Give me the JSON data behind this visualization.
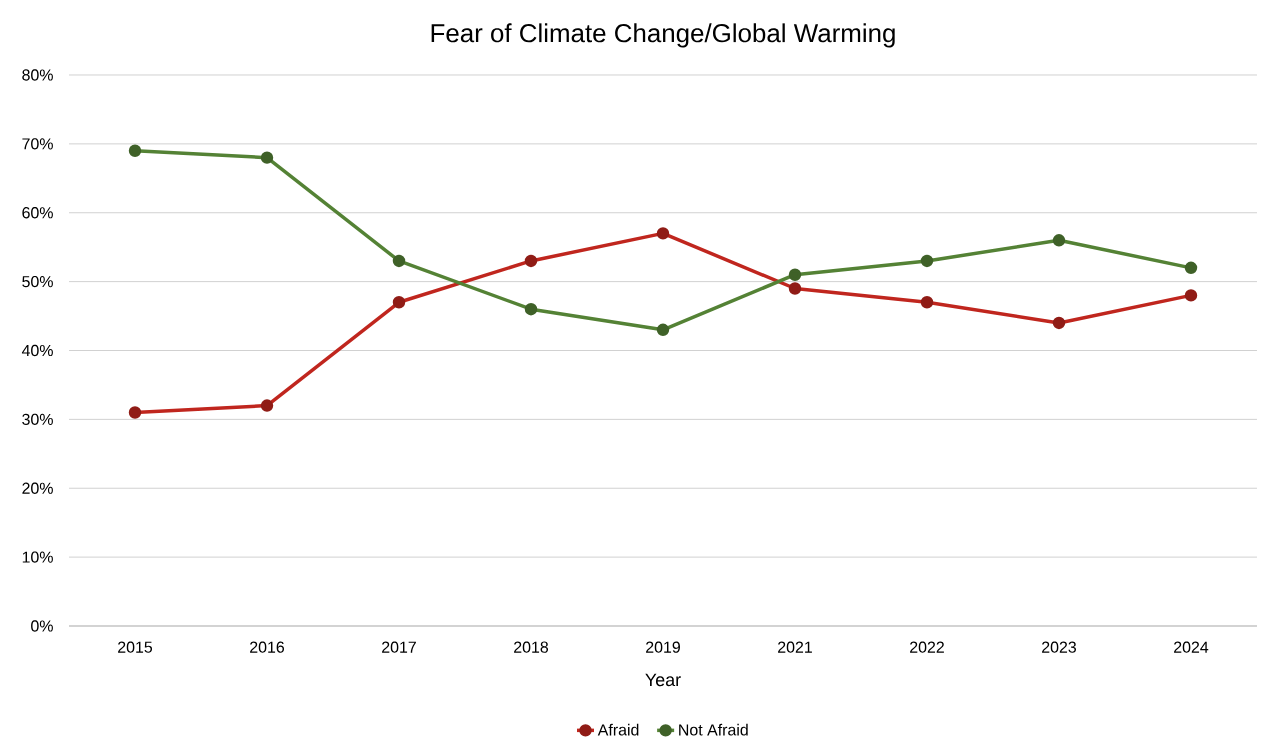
{
  "chart_data": {
    "type": "line",
    "title": "Fear of Climate Change/Global Warming",
    "xlabel": "Year",
    "categories": [
      "2015",
      "2016",
      "2017",
      "2018",
      "2019",
      "2021",
      "2022",
      "2023",
      "2024"
    ],
    "series": [
      {
        "name": "Afraid",
        "color": "#c0261e",
        "values": [
          31,
          32,
          47,
          53,
          57,
          49,
          47,
          44,
          48
        ]
      },
      {
        "name": "Not Afraid",
        "color": "#548235",
        "values": [
          69,
          68,
          53,
          46,
          43,
          51,
          53,
          56,
          52
        ]
      }
    ],
    "ylim": [
      0,
      80
    ],
    "yticks": [
      {
        "value": 0,
        "label": "0%"
      },
      {
        "value": 10,
        "label": "10%"
      },
      {
        "value": 20,
        "label": "20%"
      },
      {
        "value": 30,
        "label": "30%"
      },
      {
        "value": 40,
        "label": "40%"
      },
      {
        "value": 50,
        "label": "50%"
      },
      {
        "value": 60,
        "label": "60%"
      },
      {
        "value": 70,
        "label": "70%"
      },
      {
        "value": 80,
        "label": "80%"
      }
    ],
    "grid": "y",
    "legend": "bottom",
    "marker": "circle",
    "line_style": "solid"
  }
}
